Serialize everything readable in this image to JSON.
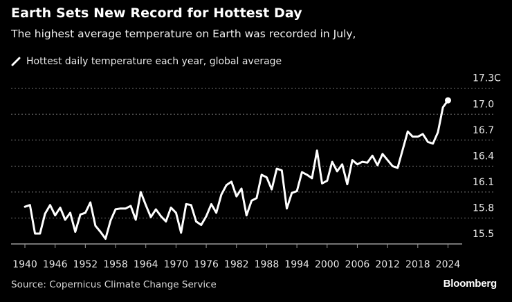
{
  "header": {
    "title": "Earth Sets New Record for Hottest Day",
    "subtitle": "The highest average temperature on Earth was recorded in July,"
  },
  "footer": {
    "source": "Source: Copernicus Climate Change Service",
    "logo": "Bloomberg"
  },
  "colors": {
    "background": "#000000",
    "line": "#ffffff",
    "grid": "#777777"
  },
  "chart_data": {
    "type": "line",
    "title": "Earth Sets New Record for Hottest Day",
    "subtitle": "The highest average temperature on Earth was recorded in July,",
    "legend_position": "top-left",
    "grid": true,
    "xlim": [
      1940,
      2024
    ],
    "ylim": [
      15.5,
      17.3
    ],
    "x_ticks": [
      "1940",
      "1946",
      "1952",
      "1958",
      "1964",
      "1970",
      "1976",
      "1982",
      "1988",
      "1994",
      "2000",
      "2006",
      "2012",
      "2018",
      "2024"
    ],
    "y_ticks": [
      "15.5",
      "15.8",
      "16.1",
      "16.4",
      "16.7",
      "17.0",
      "17.3C"
    ],
    "y_tick_values": [
      15.5,
      15.8,
      16.1,
      16.4,
      16.7,
      17.0,
      17.3
    ],
    "series": [
      {
        "name": "Hottest daily temperature each year, global average",
        "x": [
          1940,
          1941,
          1942,
          1943,
          1944,
          1945,
          1946,
          1947,
          1948,
          1949,
          1950,
          1951,
          1952,
          1953,
          1954,
          1955,
          1956,
          1957,
          1958,
          1959,
          1960,
          1961,
          1962,
          1963,
          1964,
          1965,
          1966,
          1967,
          1968,
          1969,
          1970,
          1971,
          1972,
          1973,
          1974,
          1975,
          1976,
          1977,
          1978,
          1979,
          1980,
          1981,
          1982,
          1983,
          1984,
          1985,
          1986,
          1987,
          1988,
          1989,
          1990,
          1991,
          1992,
          1993,
          1994,
          1995,
          1996,
          1997,
          1998,
          1999,
          2000,
          2001,
          2002,
          2003,
          2004,
          2005,
          2006,
          2007,
          2008,
          2009,
          2010,
          2011,
          2012,
          2013,
          2014,
          2015,
          2016,
          2017,
          2018,
          2019,
          2020,
          2021,
          2022,
          2023,
          2024
        ],
        "values": [
          15.93,
          15.95,
          15.62,
          15.62,
          15.85,
          15.95,
          15.83,
          15.92,
          15.78,
          15.86,
          15.64,
          15.84,
          15.86,
          15.98,
          15.71,
          15.64,
          15.56,
          15.77,
          15.9,
          15.91,
          15.91,
          15.94,
          15.78,
          16.1,
          15.95,
          15.81,
          15.9,
          15.82,
          15.76,
          15.92,
          15.86,
          15.63,
          15.96,
          15.95,
          15.76,
          15.72,
          15.82,
          15.96,
          15.86,
          16.07,
          16.18,
          16.22,
          16.05,
          16.14,
          15.83,
          16.0,
          16.03,
          16.3,
          16.27,
          16.13,
          16.37,
          16.35,
          15.91,
          16.09,
          16.11,
          16.33,
          16.3,
          16.26,
          16.58,
          16.2,
          16.23,
          16.45,
          16.34,
          16.42,
          16.19,
          16.47,
          16.42,
          16.45,
          16.44,
          16.52,
          16.41,
          16.54,
          16.47,
          16.4,
          16.38,
          16.59,
          16.8,
          16.74,
          16.74,
          16.77,
          16.68,
          16.66,
          16.79,
          17.08,
          17.16
        ]
      }
    ]
  }
}
